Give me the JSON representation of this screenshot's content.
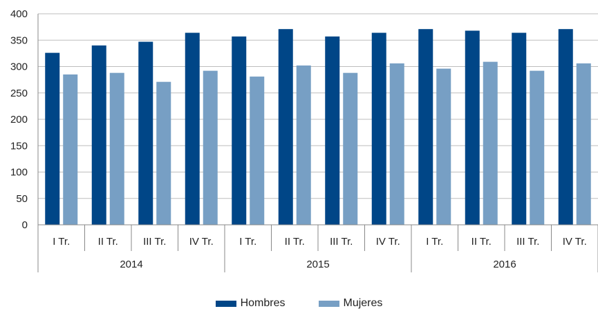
{
  "chart_data": {
    "type": "bar",
    "ylim": [
      0,
      400
    ],
    "yticks": [
      0,
      50,
      100,
      150,
      200,
      250,
      300,
      350,
      400
    ],
    "grid": true,
    "legend_position": "bottom",
    "groups": [
      {
        "label": "2014",
        "categories": [
          "I Tr.",
          "II Tr.",
          "III Tr.",
          "IV Tr."
        ]
      },
      {
        "label": "2015",
        "categories": [
          "I Tr.",
          "II Tr.",
          "III Tr.",
          "IV Tr."
        ]
      },
      {
        "label": "2016",
        "categories": [
          "I Tr.",
          "II Tr.",
          "III Tr.",
          "IV Tr."
        ]
      }
    ],
    "series": [
      {
        "name": "Hombres",
        "color": "#004687",
        "values": [
          326,
          340,
          347,
          364,
          357,
          371,
          357,
          364,
          371,
          368,
          364,
          371
        ]
      },
      {
        "name": "Mujeres",
        "color": "#779FC4",
        "values": [
          285,
          288,
          271,
          292,
          281,
          302,
          288,
          306,
          296,
          309,
          292,
          306
        ]
      }
    ]
  }
}
